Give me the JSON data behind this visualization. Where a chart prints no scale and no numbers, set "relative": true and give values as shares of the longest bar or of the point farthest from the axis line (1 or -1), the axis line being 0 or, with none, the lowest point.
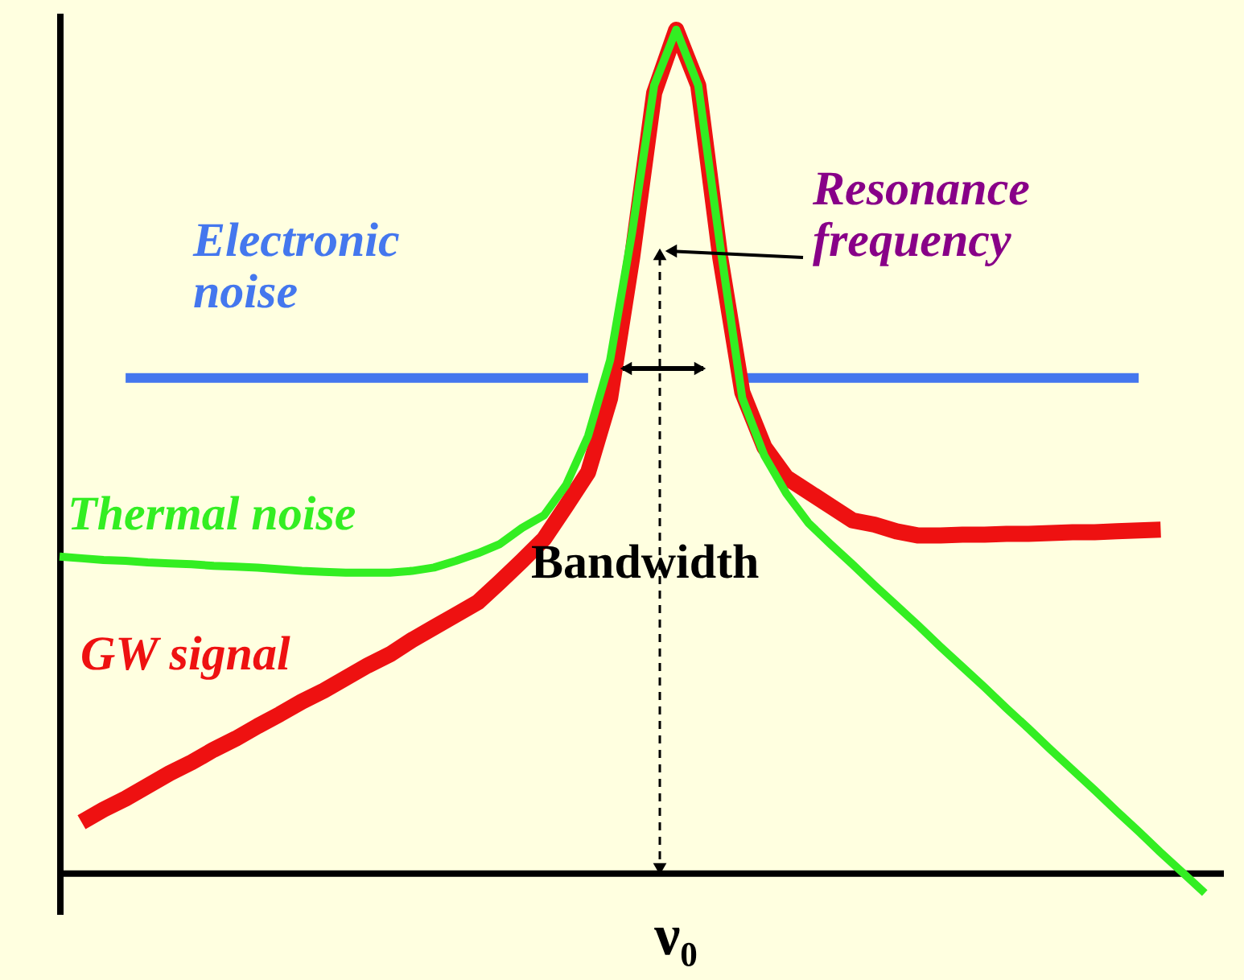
{
  "chart_data": {
    "type": "line",
    "relative": true,
    "categories": [
      null,
      null,
      null,
      null,
      null,
      null,
      null,
      null,
      null,
      null,
      null,
      null,
      null,
      null,
      null,
      null,
      null,
      null,
      null,
      null,
      null,
      null,
      null,
      null,
      null,
      null,
      null,
      null,
      null,
      null,
      null,
      null,
      null,
      null,
      null,
      null,
      null,
      null,
      null,
      null,
      null,
      null,
      null,
      null,
      null,
      null,
      null,
      null,
      null,
      null,
      null,
      null,
      null
    ],
    "series": [
      {
        "name": "Electronic noise",
        "color": "#4477ee",
        "values": [
          null,
          null,
          null,
          0.587,
          0.587,
          0.587,
          0.587,
          0.587,
          0.587,
          0.587,
          0.587,
          0.587,
          0.587,
          0.587,
          0.587,
          0.587,
          0.587,
          0.587,
          0.587,
          0.587,
          0.587,
          0.587,
          0.587,
          0.587,
          0.587,
          null,
          null,
          null,
          null,
          null,
          null,
          0.587,
          0.587,
          0.587,
          0.587,
          0.587,
          0.587,
          0.587,
          0.587,
          0.587,
          0.587,
          0.587,
          0.587,
          0.587,
          0.587,
          0.587,
          0.587,
          0.587,
          0.587,
          0.587,
          null,
          null,
          null
        ]
      },
      {
        "name": "GW signal",
        "color": "#ee1111",
        "values": [
          null,
          0.06,
          0.075,
          0.088,
          0.103,
          0.118,
          0.131,
          0.146,
          0.159,
          0.174,
          0.188,
          0.203,
          0.216,
          0.231,
          0.246,
          0.259,
          0.276,
          0.291,
          0.306,
          0.321,
          0.345,
          0.37,
          0.396,
          0.435,
          0.475,
          0.563,
          0.73,
          0.925,
          1.0,
          0.934,
          0.73,
          0.57,
          0.505,
          0.469,
          0.452,
          0.435,
          0.418,
          0.413,
          0.405,
          0.4,
          0.4,
          0.401,
          0.401,
          0.402,
          0.402,
          0.403,
          0.404,
          0.404,
          0.405,
          0.406,
          0.407,
          null,
          null
        ]
      },
      {
        "name": "Thermal noise",
        "color": "#33ee22",
        "values": [
          0.375,
          0.373,
          0.371,
          0.37,
          0.368,
          0.367,
          0.366,
          0.364,
          0.363,
          0.362,
          0.36,
          0.358,
          0.357,
          0.356,
          0.356,
          0.356,
          0.358,
          0.362,
          0.37,
          0.379,
          0.39,
          0.409,
          0.424,
          0.46,
          0.518,
          0.608,
          0.76,
          0.934,
          1.0,
          0.934,
          0.743,
          0.563,
          0.495,
          0.45,
          0.415,
          0.39,
          0.366,
          0.341,
          0.317,
          0.293,
          0.268,
          0.244,
          0.22,
          0.195,
          0.171,
          0.146,
          0.122,
          0.098,
          0.073,
          0.049,
          0.024,
          0.0,
          -0.024
        ]
      }
    ],
    "annotations": [
      "Resonance frequency",
      "Bandwidth",
      "ν₀"
    ],
    "grid": false,
    "legend": false,
    "line_style": "solid",
    "marker": "none"
  }
}
